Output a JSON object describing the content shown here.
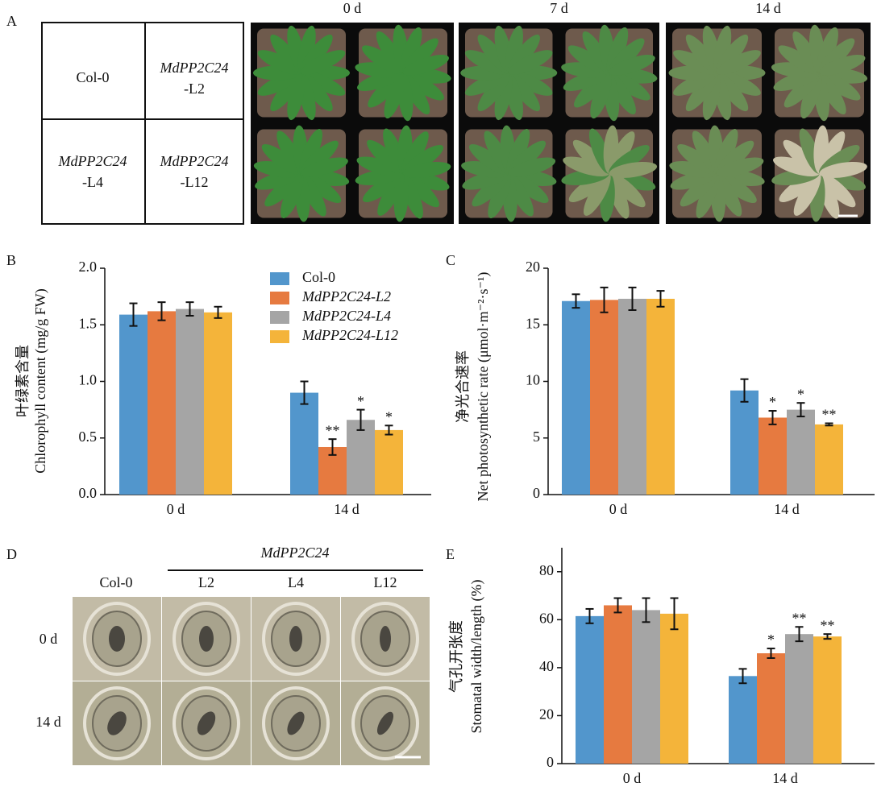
{
  "panel_labels": [
    "A",
    "B",
    "C",
    "D",
    "E"
  ],
  "panel_a": {
    "days": [
      "0 d",
      "7 d",
      "14 d"
    ],
    "layout": [
      [
        "Col-0"
      ],
      [
        "MdPP2C24",
        "-L2"
      ],
      [
        "MdPP2C24",
        "-L4"
      ],
      [
        "MdPP2C24",
        "-L12"
      ]
    ]
  },
  "panel_d": {
    "group_label": "MdPP2C24",
    "columns": [
      "Col-0",
      "L2",
      "L4",
      "L12"
    ],
    "rows": [
      "0 d",
      "14 d"
    ]
  },
  "chart_data": [
    {
      "type": "bar",
      "ylabel_cn": "叶绿素含量",
      "ylabel": "Chlorophyll content (mg/g FW)",
      "categories": [
        "0 d",
        "14 d"
      ],
      "ylim": [
        0,
        2
      ],
      "yticks": [
        {
          "value": 0,
          "label": "0.0"
        },
        0.5,
        {
          "value": 1,
          "label": "1.0"
        },
        1.5,
        {
          "value": 2,
          "label": "2.0"
        }
      ],
      "legend": true,
      "series": [
        {
          "name": "Col-0",
          "color": "#5296cc",
          "values": [
            1.59,
            0.9
          ],
          "errors": [
            0.1,
            0.1
          ],
          "significance": [
            null,
            null
          ]
        },
        {
          "name": "MdPP2C24-L2",
          "color": "#e67a40",
          "values": [
            1.62,
            0.42
          ],
          "errors": [
            0.08,
            0.07
          ],
          "significance": [
            null,
            "**"
          ]
        },
        {
          "name": "MdPP2C24-L4",
          "color": "#a5a5a5",
          "values": [
            1.64,
            0.66
          ],
          "errors": [
            0.06,
            0.09
          ],
          "significance": [
            null,
            "*"
          ]
        },
        {
          "name": "MdPP2C24-L12",
          "color": "#f4b43a",
          "values": [
            1.61,
            0.57
          ],
          "errors": [
            0.05,
            0.04
          ],
          "significance": [
            null,
            "*"
          ]
        }
      ]
    },
    {
      "type": "bar",
      "ylabel_cn": "净光合速率",
      "ylabel": "Net photosynthetic rate (μmol·m⁻²·s⁻¹)",
      "categories": [
        "0 d",
        "14 d"
      ],
      "ylim": [
        0,
        20
      ],
      "yticks": [
        0,
        5,
        10,
        15,
        20
      ],
      "legend": false,
      "series": [
        {
          "color": "#5296cc",
          "values": [
            17.1,
            9.2
          ],
          "errors": [
            0.6,
            1.0
          ],
          "significance": [
            null,
            null
          ]
        },
        {
          "color": "#e67a40",
          "values": [
            17.2,
            6.8
          ],
          "errors": [
            1.1,
            0.6
          ],
          "significance": [
            null,
            "*"
          ]
        },
        {
          "color": "#a5a5a5",
          "values": [
            17.3,
            7.5
          ],
          "errors": [
            1.0,
            0.6
          ],
          "significance": [
            null,
            "*"
          ]
        },
        {
          "color": "#f4b43a",
          "values": [
            17.3,
            6.2
          ],
          "errors": [
            0.7,
            0.1
          ],
          "significance": [
            null,
            "**"
          ]
        }
      ]
    },
    {
      "type": "bar",
      "ylabel_cn": "气孔开张度",
      "ylabel": "Stomatal width/length (%)",
      "categories": [
        "0 d",
        "14 d"
      ],
      "ylim": [
        0,
        90
      ],
      "yticks": [
        0,
        20,
        40,
        60,
        80
      ],
      "legend": false,
      "series": [
        {
          "color": "#5296cc",
          "values": [
            61.5,
            36.5
          ],
          "errors": [
            3,
            3
          ],
          "significance": [
            null,
            null
          ]
        },
        {
          "color": "#e67a40",
          "values": [
            66,
            46
          ],
          "errors": [
            3,
            2
          ],
          "significance": [
            null,
            "*"
          ]
        },
        {
          "color": "#a5a5a5",
          "values": [
            64,
            54
          ],
          "errors": [
            5,
            3
          ],
          "significance": [
            null,
            "**"
          ]
        },
        {
          "color": "#f4b43a",
          "values": [
            62.5,
            53
          ],
          "errors": [
            6.5,
            1
          ],
          "significance": [
            null,
            "**"
          ]
        }
      ]
    }
  ]
}
